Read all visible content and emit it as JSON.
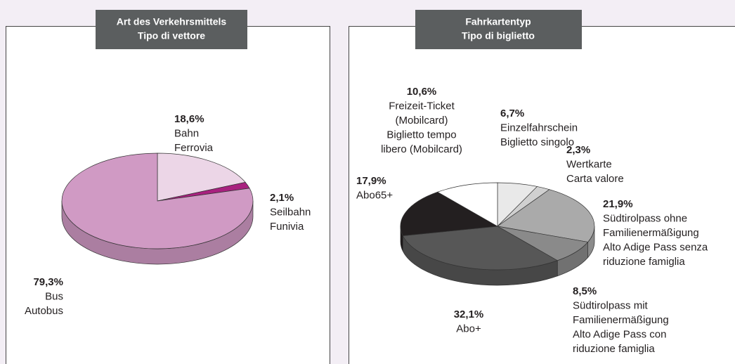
{
  "chart_data": [
    {
      "type": "pie",
      "title": "Art des Verkehrsmittels",
      "subtitle": "Tipo di vettore",
      "categories": [
        [
          "Bahn",
          "Ferrovia"
        ],
        [
          "Seilbahn",
          "Funivia"
        ],
        [
          "Bus",
          "Autobus"
        ]
      ],
      "values": [
        18.6,
        2.1,
        79.3
      ],
      "value_labels": [
        "18,6%",
        "2,1%",
        "79,3%"
      ],
      "colors": [
        "#ecd6e7",
        "#a8217f",
        "#d09ac4"
      ]
    },
    {
      "type": "pie",
      "title": "Fahrkartentyp",
      "subtitle": "Tipo di biglietto",
      "categories": [
        [
          "Einzelfahrschein",
          "Biglietto singolo"
        ],
        [
          "Wertkarte",
          "Carta valore"
        ],
        [
          "Südtirolpass ohne",
          "Familienermäßigung",
          "Alto Adige Pass senza",
          "riduzione famiglia"
        ],
        [
          "Südtirolpass mit",
          "Familienermäßigung",
          "Alto Adige Pass con",
          "riduzione famiglia"
        ],
        [
          "Abo+"
        ],
        [
          "Abo65+"
        ],
        [
          "Freizeit-Ticket",
          "(Mobilcard)",
          "Biglietto tempo",
          "libero (Mobilcard)"
        ]
      ],
      "values": [
        6.7,
        2.3,
        21.9,
        8.5,
        32.1,
        17.9,
        10.6
      ],
      "value_labels": [
        "6,7%",
        "2,3%",
        "21,9%",
        "8,5%",
        "32,1%",
        "17,9%",
        "10,6%"
      ],
      "colors": [
        "#e9e9e9",
        "#d0d0d0",
        "#aaaaaa",
        "#8a8a8a",
        "#575757",
        "#231f20",
        "#ffffff"
      ]
    }
  ]
}
